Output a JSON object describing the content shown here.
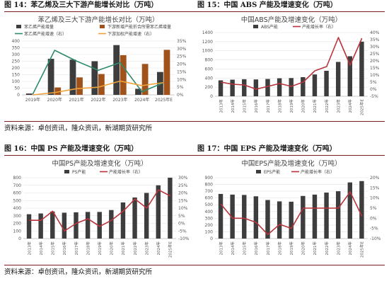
{
  "headers": [
    "图 14：苯乙烯及三大下游产能增长对比（万吨）",
    "图 15：中国 ABS 产能及增速变化（万吨）",
    "图 16：中国 PS 产能及增速变化（万吨）",
    "图 17：中国 EPS 产能及增速变化（万吨）"
  ],
  "sources": [
    "资料来源：卓创资讯，隆众资讯，新湖期货研究所",
    "资料来源：卓创资讯，隆众资讯，新湖期货研究所"
  ],
  "colors": {
    "bar_dark": "#3d3d3d",
    "bar_brown": "#a0521b",
    "line_green": "#2e8b6e",
    "line_orange": "#f0a23a",
    "line_red": "#b8333b",
    "rule": "#7a1f1f"
  },
  "chart_data": [
    {
      "type": "bar",
      "title": "苯乙烯及三大下游产能增长对比（万吨）",
      "categories": [
        "2019年",
        "2020年",
        "2021年",
        "2022年",
        "2023年",
        "2024年",
        "2025年E"
      ],
      "ylim": [
        0,
        400
      ],
      "yticks": [
        0,
        50,
        100,
        150,
        200,
        250,
        300,
        350,
        400
      ],
      "ylim_right": [
        0,
        0.35
      ],
      "yticks_right": [
        "0%",
        "5%",
        "10%",
        "15%",
        "20%",
        "25%",
        "30%",
        "35%"
      ],
      "legend": "top",
      "series": [
        {
          "name": "苯乙烯产能增量",
          "kind": "bar",
          "axis": "left",
          "color": "#3d3d3d",
          "values": [
            10,
            268,
            262,
            250,
            370,
            45,
            170
          ]
        },
        {
          "name": "下游新增产能折合所需苯乙烯增量",
          "kind": "bar",
          "axis": "left",
          "color": "#a0521b",
          "values": [
            5,
            55,
            130,
            155,
            295,
            230,
            335
          ]
        },
        {
          "name": "苯乙烯产能增速（右）",
          "kind": "line",
          "axis": "right",
          "color": "#2e8b6e",
          "values": [
            0.005,
            0.29,
            0.22,
            0.16,
            0.21,
            0.02,
            0.08
          ]
        },
        {
          "name": "下游加权产能增速（右）",
          "kind": "line",
          "axis": "right",
          "color": "#f0a23a",
          "values": [
            0.0,
            0.015,
            0.04,
            0.05,
            0.09,
            0.06,
            0.08
          ]
        }
      ]
    },
    {
      "type": "bar",
      "title": "中国ABS产能及增速变化（万吨）",
      "categories": [
        "2013年",
        "2014年",
        "2015年",
        "2016年",
        "2017年",
        "2018年",
        "2019年",
        "2020年",
        "2021年",
        "2022年",
        "2023年",
        "2024年",
        "2025年E"
      ],
      "ylim": [
        0,
        1400
      ],
      "yticks": [
        0,
        200,
        400,
        600,
        800,
        1000,
        1200,
        1400
      ],
      "ylim_right": [
        -0.05,
        0.4
      ],
      "yticks_right": [
        "-5%",
        "0%",
        "5%",
        "10%",
        "15%",
        "20%",
        "25%",
        "30%",
        "35%",
        "40%"
      ],
      "legend": "top",
      "series": [
        {
          "name": "ABS产能",
          "kind": "bar",
          "axis": "left",
          "color": "#3d3d3d",
          "values": [
            350,
            365,
            375,
            370,
            380,
            395,
            400,
            420,
            480,
            560,
            755,
            880,
            1200
          ]
        },
        {
          "name": "产能增长率（右）",
          "kind": "line",
          "axis": "right",
          "color": "#b8333b",
          "values": [
            0.05,
            0.035,
            0.03,
            0.0,
            0.02,
            0.04,
            0.02,
            0.05,
            0.13,
            0.16,
            0.365,
            0.17,
            0.36
          ]
        }
      ]
    },
    {
      "type": "bar",
      "title": "中国PS产能及增速变化（万吨）",
      "categories": [
        "2013年",
        "2014年",
        "2015年",
        "2016年",
        "2017年",
        "2018年",
        "2019年",
        "2020年",
        "2021年",
        "2022年",
        "2023年",
        "2024年",
        "2025年E"
      ],
      "ylim": [
        0,
        800
      ],
      "yticks": [
        0,
        100,
        200,
        300,
        400,
        500,
        600,
        700,
        800
      ],
      "ylim_right": [
        -0.1,
        0.3
      ],
      "yticks_right": [
        "-10%",
        "-5%",
        "0%",
        "5%",
        "10%",
        "15%",
        "20%",
        "25%",
        "30%"
      ],
      "legend": "top",
      "series": [
        {
          "name": "PS产能",
          "kind": "bar",
          "axis": "left",
          "color": "#3d3d3d",
          "values": [
            320,
            330,
            355,
            340,
            345,
            350,
            350,
            375,
            475,
            540,
            600,
            700,
            800
          ]
        },
        {
          "name": "产能增长率（右）",
          "kind": "line",
          "axis": "right",
          "color": "#b8333b",
          "values": [
            0.02,
            0.02,
            0.08,
            -0.05,
            0.0,
            0.03,
            -0.02,
            0.02,
            0.08,
            0.16,
            0.1,
            0.22,
            0.18
          ]
        }
      ]
    },
    {
      "type": "bar",
      "title": "中国EPS产能及增速变化（万吨）",
      "categories": [
        "2013年",
        "2014年",
        "2015年",
        "2016年",
        "2017年",
        "2018年",
        "2019年",
        "2020年",
        "2021年",
        "2022年",
        "2023年",
        "2024年",
        "2025年E"
      ],
      "ylim": [
        0,
        900
      ],
      "yticks": [
        0,
        100,
        200,
        300,
        400,
        500,
        600,
        700,
        800,
        900
      ],
      "ylim_right": [
        -0.1,
        0.2
      ],
      "yticks_right": [
        "-10%",
        "-5%",
        "0%",
        "5%",
        "10%",
        "15%",
        "20%"
      ],
      "legend": "top",
      "series": [
        {
          "name": "EPS产能",
          "kind": "bar",
          "axis": "left",
          "color": "#3d3d3d",
          "values": [
            660,
            650,
            645,
            625,
            570,
            550,
            545,
            630,
            650,
            680,
            700,
            830,
            850
          ]
        },
        {
          "name": "产能增长率（右）",
          "kind": "line",
          "axis": "right",
          "color": "#b8333b",
          "values": [
            0.07,
            0.0,
            0.0,
            -0.02,
            -0.08,
            -0.03,
            -0.05,
            0.05,
            0.05,
            0.05,
            0.05,
            0.13,
            0.01
          ]
        }
      ]
    }
  ]
}
